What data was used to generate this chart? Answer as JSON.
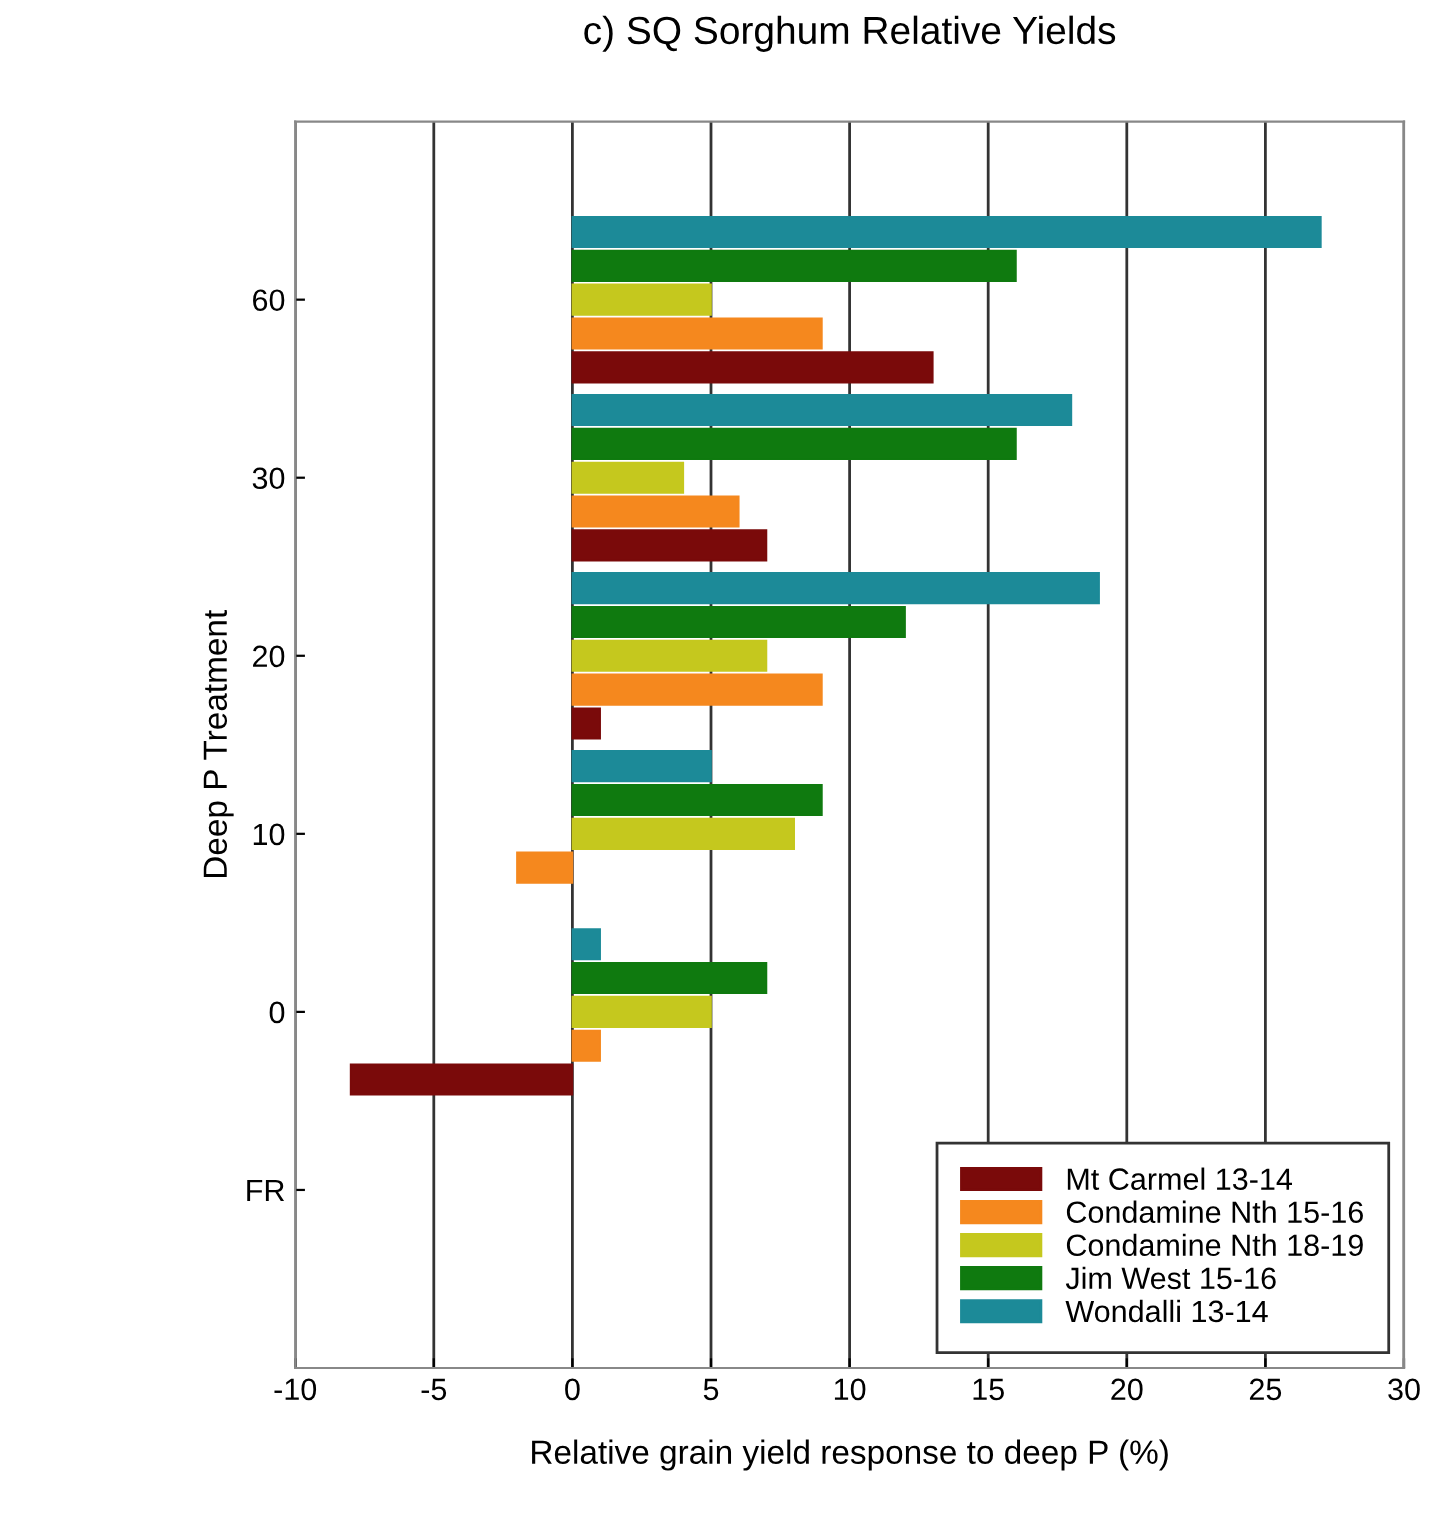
{
  "chart_data": {
    "type": "bar",
    "orientation": "horizontal",
    "title": "c) SQ Sorghum Relative Yields",
    "xlabel": "Relative grain yield response to deep P (%)",
    "ylabel": "Deep P Treatment",
    "categories": [
      "60",
      "30",
      "20",
      "10",
      "0",
      "FR"
    ],
    "series": [
      {
        "name": "Mt Carmel 13-14",
        "color": "#7a0a0a",
        "values": [
          13,
          7,
          1,
          null,
          -8,
          null
        ]
      },
      {
        "name": "Condamine Nth 15-16",
        "color": "#f5881e",
        "values": [
          9,
          6,
          9,
          -2,
          1,
          null
        ]
      },
      {
        "name": "Condamine Nth 18-19",
        "color": "#c5c81e",
        "values": [
          5,
          4,
          7,
          8,
          5,
          null
        ]
      },
      {
        "name": "Jim West 15-16",
        "color": "#0f7a0f",
        "values": [
          16,
          16,
          12,
          9,
          7,
          null
        ]
      },
      {
        "name": "Wondalli 13-14",
        "color": "#1c8a98",
        "values": [
          27,
          18,
          19,
          5,
          1,
          null
        ]
      }
    ],
    "xlim": [
      -10,
      30
    ],
    "xticks": [
      -10,
      -5,
      0,
      5,
      10,
      15,
      20,
      25,
      30
    ],
    "grid": "x",
    "legend": "bottom right"
  }
}
